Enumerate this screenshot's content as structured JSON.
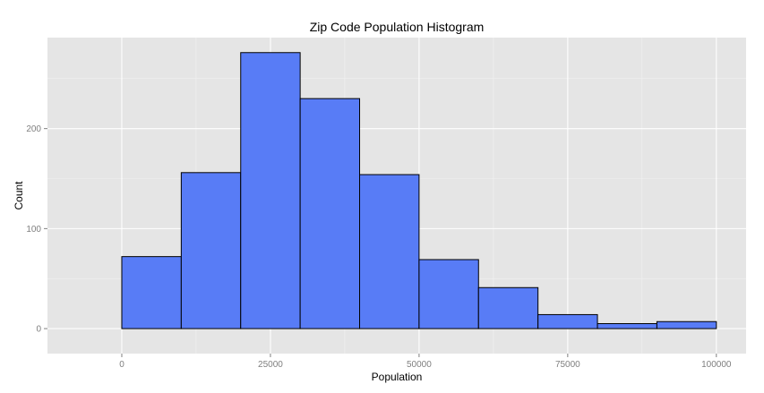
{
  "chart_data": {
    "type": "bar",
    "title": "Zip Code Population Histogram",
    "xlabel": "Population",
    "ylabel": "Count",
    "bin_width": 10000,
    "bins": [
      {
        "start": 0,
        "end": 10000,
        "count": 72
      },
      {
        "start": 10000,
        "end": 20000,
        "count": 156
      },
      {
        "start": 20000,
        "end": 30000,
        "count": 276
      },
      {
        "start": 30000,
        "end": 40000,
        "count": 230
      },
      {
        "start": 40000,
        "end": 50000,
        "count": 154
      },
      {
        "start": 50000,
        "end": 60000,
        "count": 69
      },
      {
        "start": 60000,
        "end": 70000,
        "count": 41
      },
      {
        "start": 70000,
        "end": 80000,
        "count": 14
      },
      {
        "start": 80000,
        "end": 90000,
        "count": 5
      },
      {
        "start": 90000,
        "end": 100000,
        "count": 7
      }
    ],
    "xlim": [
      -12500,
      105000
    ],
    "ylim": [
      -25,
      291
    ],
    "x_ticks": [
      0,
      25000,
      50000,
      75000,
      100000
    ],
    "x_tick_labels": [
      "0",
      "25000",
      "50000",
      "75000",
      "100000"
    ],
    "y_ticks": [
      0,
      100,
      200
    ],
    "y_tick_labels": [
      "0",
      "100",
      "200"
    ],
    "grid": true,
    "colors": {
      "panel_background": "#e5e5e5",
      "grid_major": "#ffffff",
      "grid_minor": "#f2f2f2",
      "bar_fill": "#587cf6",
      "bar_outline": "#000000",
      "tick_label": "#7f7f7f"
    }
  }
}
